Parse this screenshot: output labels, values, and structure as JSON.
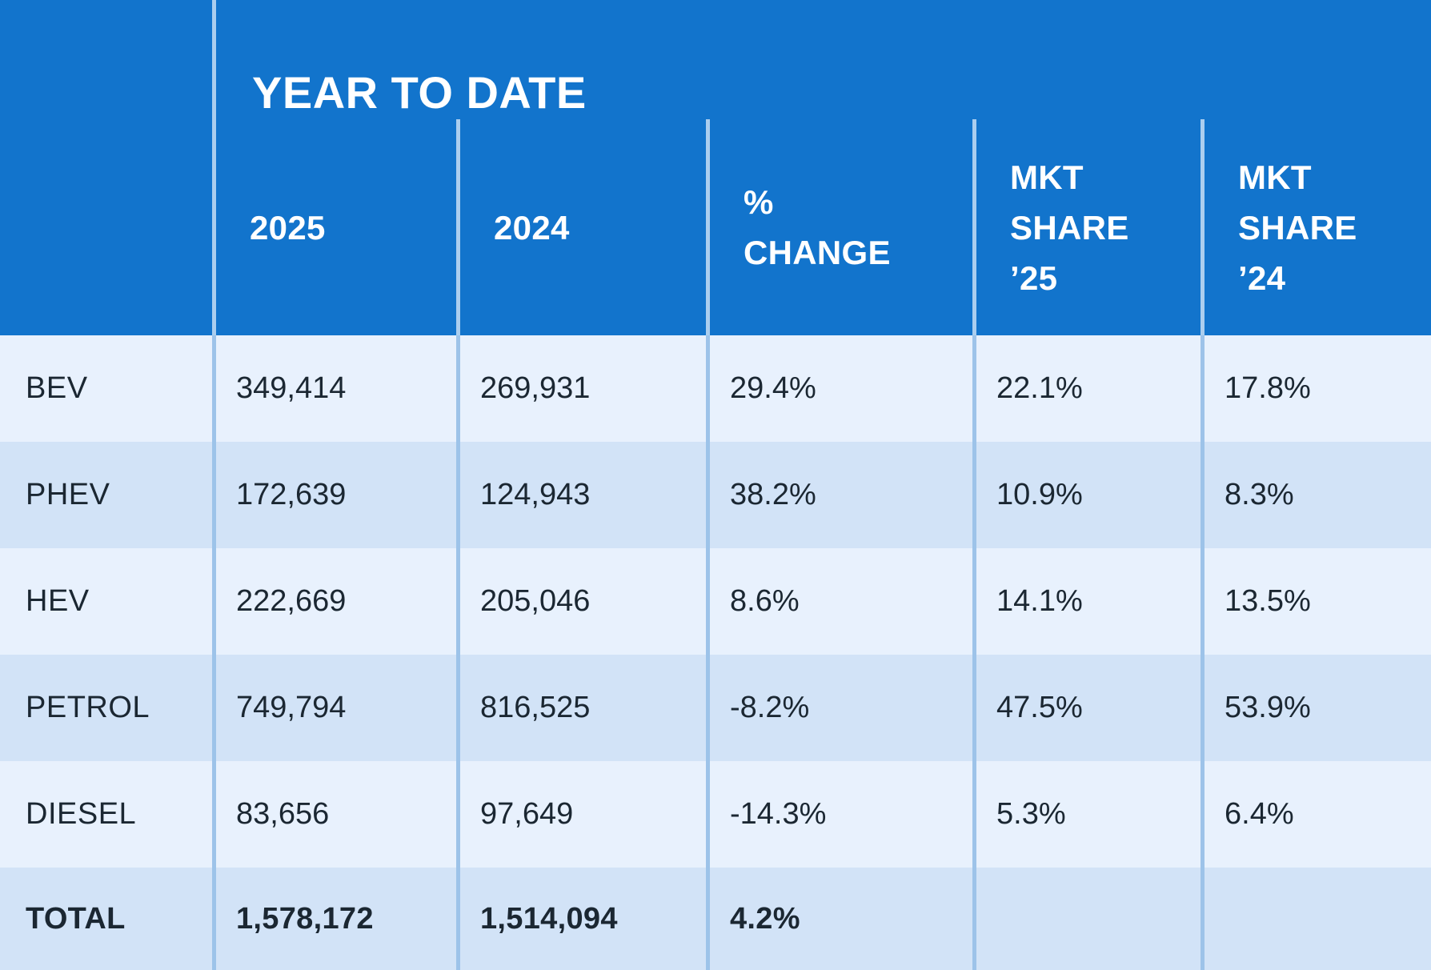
{
  "header": {
    "title": "YEAR TO DATE",
    "columns": [
      {
        "lines": [
          "2025"
        ]
      },
      {
        "lines": [
          "2024"
        ]
      },
      {
        "lines": [
          "%",
          "CHANGE"
        ]
      },
      {
        "lines": [
          "MKT",
          "SHARE",
          "’25"
        ]
      },
      {
        "lines": [
          "MKT",
          "SHARE",
          "’24"
        ]
      }
    ]
  },
  "table": {
    "rows": [
      {
        "label": "BEV",
        "values": [
          "349,414",
          "269,931",
          "29.4%",
          "22.1%",
          "17.8%"
        ]
      },
      {
        "label": "PHEV",
        "values": [
          "172,639",
          "124,943",
          "38.2%",
          "10.9%",
          "8.3%"
        ]
      },
      {
        "label": "HEV",
        "values": [
          "222,669",
          "205,046",
          "8.6%",
          "14.1%",
          "13.5%"
        ]
      },
      {
        "label": "PETROL",
        "values": [
          "749,794",
          "816,525",
          "-8.2%",
          "47.5%",
          "53.9%"
        ]
      },
      {
        "label": "DIESEL",
        "values": [
          "83,656",
          "97,649",
          "-14.3%",
          "5.3%",
          "6.4%"
        ]
      },
      {
        "label": "TOTAL",
        "values": [
          "1,578,172",
          "1,514,094",
          "4.2%",
          "",
          ""
        ]
      }
    ]
  },
  "colors": {
    "header_background": "#1274cc",
    "row_light": "#e8f1fd",
    "row_dark": "#d2e3f7",
    "divider_header": "#abceef",
    "divider_body": "#9dc3e9",
    "header_text": "#ffffff",
    "body_text": "#1b2732"
  },
  "chart_data": {
    "type": "table",
    "title": "YEAR TO DATE",
    "columns": [
      "",
      "2025",
      "2024",
      "% CHANGE",
      "MKT SHARE ’25",
      "MKT SHARE ’24"
    ],
    "rows": [
      [
        "BEV",
        349414,
        269931,
        "29.4%",
        "22.1%",
        "17.8%"
      ],
      [
        "PHEV",
        172639,
        124943,
        "38.2%",
        "10.9%",
        "8.3%"
      ],
      [
        "HEV",
        222669,
        205046,
        "8.6%",
        "14.1%",
        "13.5%"
      ],
      [
        "PETROL",
        749794,
        816525,
        "-8.2%",
        "47.5%",
        "53.9%"
      ],
      [
        "DIESEL",
        83656,
        97649,
        "-14.3%",
        "5.3%",
        "6.4%"
      ],
      [
        "TOTAL",
        1578172,
        1514094,
        "4.2%",
        "",
        ""
      ]
    ]
  }
}
